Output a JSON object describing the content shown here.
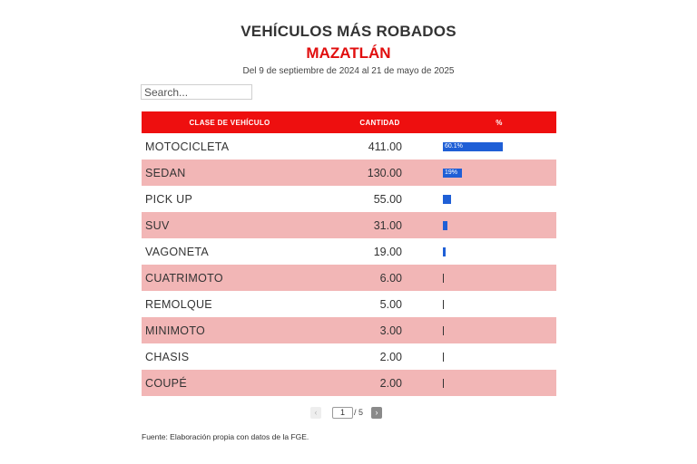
{
  "header": {
    "title": "VEHÍCULOS MÁS ROBADOS",
    "subtitle": "MAZATLÁN",
    "date_range": "Del 9 de septiembre de 2024 al 21 de mayo de 2025"
  },
  "search": {
    "placeholder": "Search..."
  },
  "table": {
    "columns": [
      "CLASE DE VEHÍCULO",
      "CANTIDAD",
      "%"
    ],
    "rows": [
      {
        "clase": "MOTOCICLETA",
        "cantidad": "411.00",
        "pct": 60.1,
        "pct_label": "60.1%"
      },
      {
        "clase": "SEDAN",
        "cantidad": "130.00",
        "pct": 19.0,
        "pct_label": "19%"
      },
      {
        "clase": "PICK UP",
        "cantidad": "55.00",
        "pct": 8.0,
        "pct_label": ""
      },
      {
        "clase": "SUV",
        "cantidad": "31.00",
        "pct": 4.5,
        "pct_label": ""
      },
      {
        "clase": "VAGONETA",
        "cantidad": "19.00",
        "pct": 2.8,
        "pct_label": ""
      },
      {
        "clase": "CUATRIMOTO",
        "cantidad": "6.00",
        "pct": 0.9,
        "pct_label": ""
      },
      {
        "clase": "REMOLQUE",
        "cantidad": "5.00",
        "pct": 0.7,
        "pct_label": ""
      },
      {
        "clase": "MINIMOTO",
        "cantidad": "3.00",
        "pct": 0.4,
        "pct_label": ""
      },
      {
        "clase": "CHASIS",
        "cantidad": "2.00",
        "pct": 0.3,
        "pct_label": ""
      },
      {
        "clase": "COUPÉ",
        "cantidad": "2.00",
        "pct": 0.3,
        "pct_label": ""
      }
    ]
  },
  "pagination": {
    "prev_icon": "chevron-left-icon",
    "next_icon": "chevron-right-icon",
    "current_page": "1",
    "total_label": "/ 5"
  },
  "footer": {
    "source": "Fuente: Elaboración propia con datos de la FGE."
  },
  "colors": {
    "accent_red": "#ee0f0f",
    "row_alt": "#f2b6b6",
    "bar_blue": "#1f5fd6"
  }
}
